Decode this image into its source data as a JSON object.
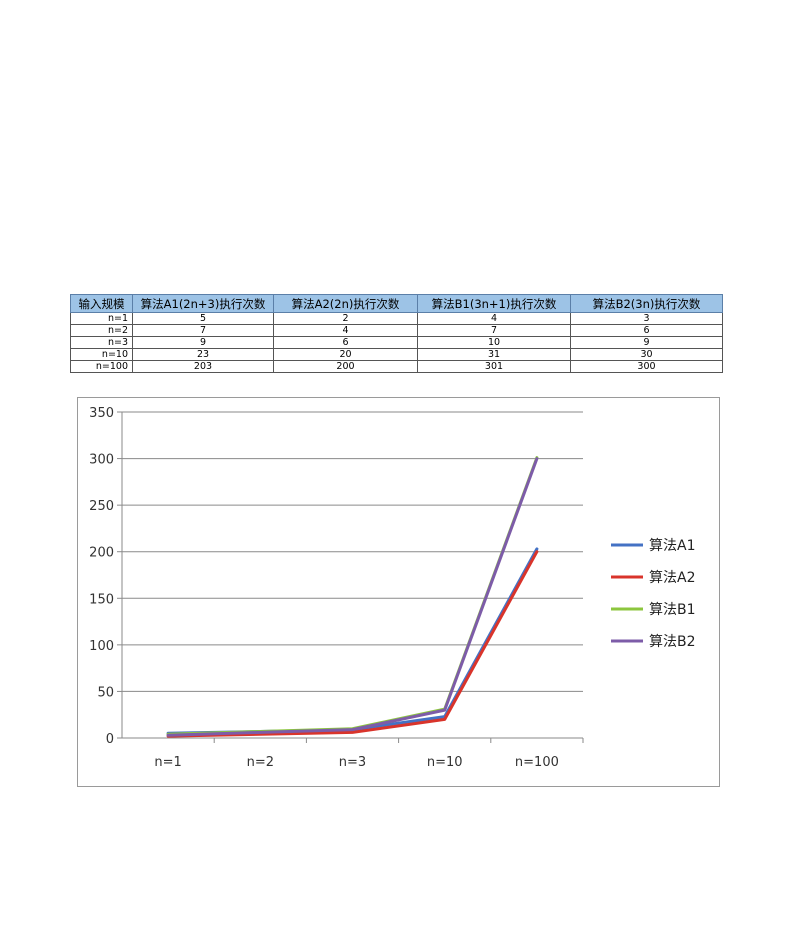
{
  "table": {
    "headers": [
      "输入规模",
      "算法A1(2n+3)执行次数",
      "算法A2(2n)执行次数",
      "算法B1(3n+1)执行次数",
      "算法B2(3n)执行次数"
    ],
    "rows": [
      [
        "n=1",
        "5",
        "2",
        "4",
        "3"
      ],
      [
        "n=2",
        "7",
        "4",
        "7",
        "6"
      ],
      [
        "n=3",
        "9",
        "6",
        "10",
        "9"
      ],
      [
        "n=10",
        "23",
        "20",
        "31",
        "30"
      ],
      [
        "n=100",
        "203",
        "200",
        "301",
        "300"
      ]
    ]
  },
  "chart_data": {
    "type": "line",
    "categories": [
      "n=1",
      "n=2",
      "n=3",
      "n=10",
      "n=100"
    ],
    "series": [
      {
        "name": "算法A1",
        "color": "#4472c4",
        "values": [
          5,
          7,
          9,
          23,
          203
        ]
      },
      {
        "name": "算法A2",
        "color": "#d9342b",
        "values": [
          2,
          4,
          6,
          20,
          200
        ]
      },
      {
        "name": "算法B1",
        "color": "#8cc63e",
        "values": [
          4,
          7,
          10,
          31,
          301
        ]
      },
      {
        "name": "算法B2",
        "color": "#7d5ca8",
        "values": [
          3,
          6,
          9,
          30,
          300
        ]
      }
    ],
    "yticks": [
      0,
      50,
      100,
      150,
      200,
      250,
      300,
      350
    ],
    "ylim": [
      0,
      350
    ],
    "grid": true,
    "legend_position": "right"
  }
}
